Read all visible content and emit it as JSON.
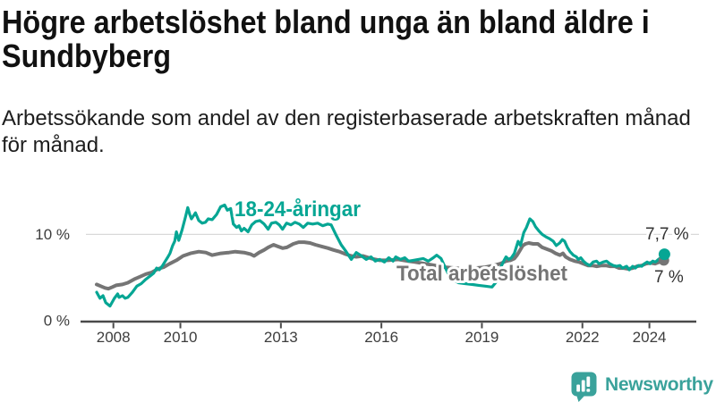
{
  "chart_data": {
    "type": "line",
    "title": "Högre arbetslöshet bland unga än bland äldre i Sundbyberg",
    "subtitle": "Arbetssökande som andel av den registerbaserade arbetskraften månad för månad.",
    "xlim": [
      2007.02,
      2025.4
    ],
    "ylim": [
      0,
      15.42
    ],
    "grid": "horizontal-at-10-only",
    "legend_position": "inline-labels",
    "x_ticks": [
      2008,
      2010,
      2013,
      2016,
      2019,
      2022,
      2024
    ],
    "y_ticks": [
      {
        "value": 0,
        "label": "0 %",
        "gridline": false
      },
      {
        "value": 10,
        "label": "10 %",
        "gridline": true
      }
    ],
    "series": [
      {
        "name": "18-24-åringar",
        "color": "#06a694",
        "end_label": "7,7 %",
        "end_dot": true,
        "points": [
          [
            2007.5,
            3.3
          ],
          [
            2007.6,
            2.6
          ],
          [
            2007.69,
            2.9
          ],
          [
            2007.77,
            2.1
          ],
          [
            2007.9,
            1.7
          ],
          [
            2008.03,
            2.6
          ],
          [
            2008.13,
            3.1
          ],
          [
            2008.17,
            2.7
          ],
          [
            2008.27,
            2.9
          ],
          [
            2008.35,
            2.6
          ],
          [
            2008.43,
            2.7
          ],
          [
            2008.57,
            3.3
          ],
          [
            2008.7,
            4.0
          ],
          [
            2008.83,
            4.3
          ],
          [
            2008.97,
            4.8
          ],
          [
            2009.1,
            5.2
          ],
          [
            2009.2,
            5.5
          ],
          [
            2009.29,
            6.1
          ],
          [
            2009.37,
            5.9
          ],
          [
            2009.47,
            6.4
          ],
          [
            2009.55,
            6.9
          ],
          [
            2009.63,
            7.4
          ],
          [
            2009.69,
            7.8
          ],
          [
            2009.77,
            8.7
          ],
          [
            2009.83,
            9.2
          ],
          [
            2009.88,
            10.3
          ],
          [
            2009.95,
            9.3
          ],
          [
            2010.05,
            10.5
          ],
          [
            2010.15,
            12.0
          ],
          [
            2010.22,
            13.1
          ],
          [
            2010.28,
            12.3
          ],
          [
            2010.33,
            11.8
          ],
          [
            2010.45,
            12.5
          ],
          [
            2010.55,
            11.6
          ],
          [
            2010.65,
            11.3
          ],
          [
            2010.75,
            11.4
          ],
          [
            2010.83,
            11.8
          ],
          [
            2010.95,
            11.7
          ],
          [
            2011.08,
            12.3
          ],
          [
            2011.2,
            13.2
          ],
          [
            2011.32,
            13.4
          ],
          [
            2011.4,
            12.8
          ],
          [
            2011.5,
            13.0
          ],
          [
            2011.58,
            11.2
          ],
          [
            2011.68,
            10.8
          ],
          [
            2011.75,
            11.0
          ],
          [
            2011.82,
            10.4
          ],
          [
            2011.9,
            10.7
          ],
          [
            2012.02,
            10.3
          ],
          [
            2012.13,
            11.1
          ],
          [
            2012.25,
            11.5
          ],
          [
            2012.37,
            11.6
          ],
          [
            2012.5,
            11.2
          ],
          [
            2012.62,
            10.6
          ],
          [
            2012.72,
            11.3
          ],
          [
            2012.85,
            11.4
          ],
          [
            2012.95,
            11.1
          ],
          [
            2013.05,
            10.6
          ],
          [
            2013.17,
            11.3
          ],
          [
            2013.3,
            11.1
          ],
          [
            2013.42,
            11.4
          ],
          [
            2013.55,
            11.2
          ],
          [
            2013.67,
            10.8
          ],
          [
            2013.8,
            11.3
          ],
          [
            2013.95,
            11.2
          ],
          [
            2014.1,
            11.3
          ],
          [
            2014.25,
            11.0
          ],
          [
            2014.4,
            11.2
          ],
          [
            2014.5,
            11.1
          ],
          [
            2014.65,
            9.9
          ],
          [
            2014.8,
            8.8
          ],
          [
            2014.95,
            8.0
          ],
          [
            2015.1,
            7.1
          ],
          [
            2015.25,
            7.9
          ],
          [
            2015.37,
            7.6
          ],
          [
            2015.55,
            7.1
          ],
          [
            2015.69,
            7.4
          ],
          [
            2015.82,
            6.9
          ],
          [
            2015.95,
            7.1
          ],
          [
            2016.09,
            6.8
          ],
          [
            2016.22,
            7.3
          ],
          [
            2016.35,
            6.9
          ],
          [
            2016.43,
            7.4
          ],
          [
            2016.57,
            7.1
          ],
          [
            2016.7,
            7.3
          ],
          [
            2016.81,
            6.9
          ],
          [
            2016.95,
            7.0
          ],
          [
            2017.1,
            7.1
          ],
          [
            2017.25,
            7.2
          ],
          [
            2017.4,
            6.9
          ],
          [
            2017.55,
            7.3
          ],
          [
            2017.65,
            7.6
          ],
          [
            2017.78,
            7.2
          ],
          [
            2017.9,
            6.2
          ],
          [
            2018.05,
            5.0
          ],
          [
            2018.15,
            4.7
          ],
          [
            2018.3,
            4.4
          ],
          [
            2018.5,
            4.3
          ],
          [
            2018.7,
            4.2
          ],
          [
            2018.9,
            4.1
          ],
          [
            2019.1,
            4.0
          ],
          [
            2019.3,
            3.9
          ],
          [
            2019.45,
            4.6
          ],
          [
            2019.58,
            6.3
          ],
          [
            2019.65,
            6.9
          ],
          [
            2019.72,
            7.4
          ],
          [
            2019.8,
            7.1
          ],
          [
            2019.88,
            7.3
          ],
          [
            2019.97,
            7.8
          ],
          [
            2020.08,
            9.2
          ],
          [
            2020.15,
            8.7
          ],
          [
            2020.25,
            10.2
          ],
          [
            2020.33,
            10.8
          ],
          [
            2020.43,
            11.8
          ],
          [
            2020.52,
            11.5
          ],
          [
            2020.6,
            10.9
          ],
          [
            2020.7,
            10.4
          ],
          [
            2020.8,
            10.0
          ],
          [
            2020.92,
            9.7
          ],
          [
            2021.02,
            9.5
          ],
          [
            2021.13,
            9.2
          ],
          [
            2021.22,
            8.7
          ],
          [
            2021.32,
            9.0
          ],
          [
            2021.4,
            9.4
          ],
          [
            2021.47,
            9.2
          ],
          [
            2021.55,
            8.5
          ],
          [
            2021.63,
            8.0
          ],
          [
            2021.73,
            7.6
          ],
          [
            2021.82,
            7.4
          ],
          [
            2021.88,
            7.1
          ],
          [
            2021.95,
            7.3
          ],
          [
            2022.03,
            6.9
          ],
          [
            2022.12,
            6.6
          ],
          [
            2022.22,
            6.4
          ],
          [
            2022.32,
            6.8
          ],
          [
            2022.42,
            6.9
          ],
          [
            2022.5,
            6.6
          ],
          [
            2022.62,
            6.8
          ],
          [
            2022.72,
            6.9
          ],
          [
            2022.82,
            6.6
          ],
          [
            2022.92,
            6.4
          ],
          [
            2023.02,
            6.3
          ],
          [
            2023.12,
            6.4
          ],
          [
            2023.2,
            6.1
          ],
          [
            2023.32,
            6.3
          ],
          [
            2023.4,
            5.9
          ],
          [
            2023.5,
            6.3
          ],
          [
            2023.58,
            6.1
          ],
          [
            2023.67,
            6.4
          ],
          [
            2023.77,
            6.3
          ],
          [
            2023.85,
            6.6
          ],
          [
            2023.93,
            6.8
          ],
          [
            2024.02,
            6.6
          ],
          [
            2024.1,
            6.9
          ],
          [
            2024.18,
            6.8
          ],
          [
            2024.27,
            7.1
          ],
          [
            2024.37,
            7.4
          ],
          [
            2024.45,
            7.7
          ]
        ]
      },
      {
        "name": "Total arbetslöshet",
        "color": "#757575",
        "end_label": "7 %",
        "end_dot": true,
        "points": [
          [
            2007.5,
            4.2
          ],
          [
            2007.62,
            4.0
          ],
          [
            2007.75,
            3.8
          ],
          [
            2007.85,
            3.7
          ],
          [
            2007.97,
            3.9
          ],
          [
            2008.08,
            4.1
          ],
          [
            2008.27,
            4.2
          ],
          [
            2008.43,
            4.4
          ],
          [
            2008.62,
            4.8
          ],
          [
            2008.8,
            5.1
          ],
          [
            2008.97,
            5.4
          ],
          [
            2009.15,
            5.6
          ],
          [
            2009.33,
            6.0
          ],
          [
            2009.5,
            6.2
          ],
          [
            2009.68,
            6.6
          ],
          [
            2009.88,
            7.0
          ],
          [
            2010.08,
            7.5
          ],
          [
            2010.3,
            7.8
          ],
          [
            2010.55,
            8.0
          ],
          [
            2010.76,
            7.9
          ],
          [
            2010.95,
            7.6
          ],
          [
            2011.21,
            7.8
          ],
          [
            2011.45,
            7.9
          ],
          [
            2011.64,
            8.0
          ],
          [
            2011.9,
            7.9
          ],
          [
            2012.1,
            7.7
          ],
          [
            2012.2,
            7.5
          ],
          [
            2012.35,
            7.9
          ],
          [
            2012.5,
            8.2
          ],
          [
            2012.62,
            8.5
          ],
          [
            2012.78,
            8.8
          ],
          [
            2012.91,
            8.6
          ],
          [
            2013.05,
            8.4
          ],
          [
            2013.18,
            8.5
          ],
          [
            2013.37,
            8.9
          ],
          [
            2013.53,
            9.1
          ],
          [
            2013.7,
            9.1
          ],
          [
            2013.87,
            9.0
          ],
          [
            2014.03,
            8.8
          ],
          [
            2014.22,
            8.6
          ],
          [
            2014.41,
            8.4
          ],
          [
            2014.57,
            8.2
          ],
          [
            2014.75,
            8.0
          ],
          [
            2014.94,
            7.7
          ],
          [
            2015.1,
            7.5
          ],
          [
            2015.25,
            7.4
          ],
          [
            2015.45,
            7.5
          ],
          [
            2015.7,
            7.2
          ],
          [
            2015.95,
            7.0
          ],
          [
            2016.2,
            7.0
          ],
          [
            2016.5,
            7.1
          ],
          [
            2016.8,
            6.9
          ],
          [
            2017.0,
            6.8
          ],
          [
            2017.3,
            6.6
          ],
          [
            2017.6,
            6.4
          ],
          [
            2017.9,
            6.2
          ],
          [
            2018.2,
            6.1
          ],
          [
            2018.5,
            6.0
          ],
          [
            2018.8,
            6.1
          ],
          [
            2019.1,
            6.2
          ],
          [
            2019.35,
            6.4
          ],
          [
            2019.55,
            6.6
          ],
          [
            2019.72,
            6.9
          ],
          [
            2019.85,
            7.0
          ],
          [
            2019.97,
            7.2
          ],
          [
            2020.05,
            7.6
          ],
          [
            2020.13,
            8.1
          ],
          [
            2020.22,
            8.7
          ],
          [
            2020.3,
            8.9
          ],
          [
            2020.4,
            9.0
          ],
          [
            2020.53,
            8.9
          ],
          [
            2020.67,
            8.9
          ],
          [
            2020.8,
            8.5
          ],
          [
            2020.93,
            8.3
          ],
          [
            2021.07,
            8.1
          ],
          [
            2021.2,
            7.8
          ],
          [
            2021.33,
            7.6
          ],
          [
            2021.42,
            7.8
          ],
          [
            2021.5,
            7.4
          ],
          [
            2021.63,
            7.1
          ],
          [
            2021.77,
            6.9
          ],
          [
            2021.9,
            6.8
          ],
          [
            2022.03,
            6.6
          ],
          [
            2022.17,
            6.4
          ],
          [
            2022.3,
            6.4
          ],
          [
            2022.43,
            6.3
          ],
          [
            2022.57,
            6.4
          ],
          [
            2022.7,
            6.4
          ],
          [
            2022.83,
            6.3
          ],
          [
            2022.97,
            6.3
          ],
          [
            2023.1,
            6.1
          ],
          [
            2023.23,
            6.1
          ],
          [
            2023.37,
            6.0
          ],
          [
            2023.5,
            6.1
          ],
          [
            2023.63,
            6.3
          ],
          [
            2023.77,
            6.4
          ],
          [
            2023.9,
            6.6
          ],
          [
            2024.03,
            6.7
          ],
          [
            2024.17,
            6.6
          ],
          [
            2024.3,
            6.8
          ],
          [
            2024.43,
            7.0
          ]
        ]
      }
    ]
  },
  "footer": {
    "logo_text": "Newsworthy",
    "logo_icon": "newsworthy-chart-bubble-icon",
    "logo_color": "#3aa29b"
  },
  "colors": {
    "accent_teal": "#06a694",
    "line_gray": "#757575",
    "axis": "#4a4a4a",
    "gridline": "#d9d9d9"
  }
}
